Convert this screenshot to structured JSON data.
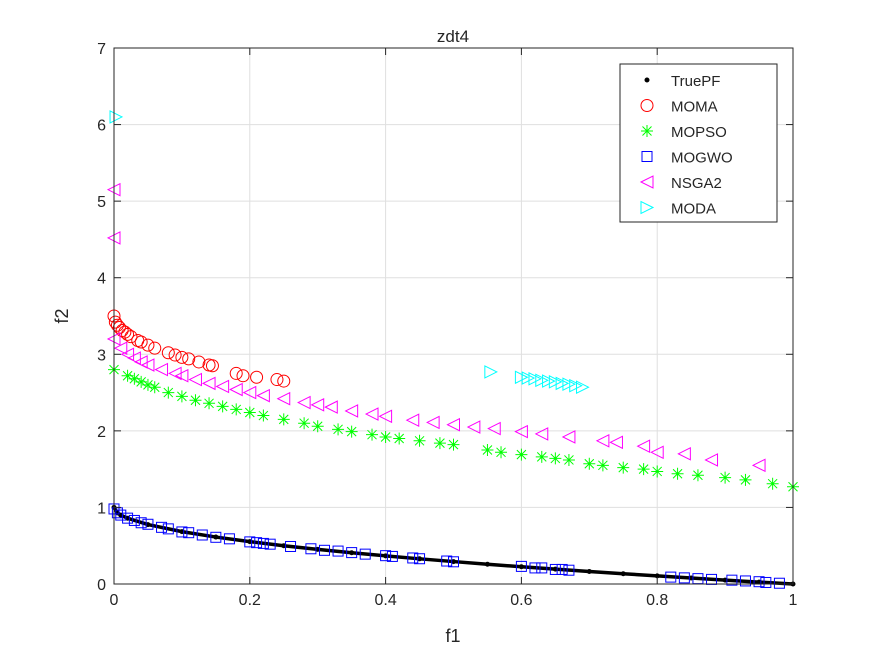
{
  "chart_data": {
    "type": "scatter",
    "title": "zdt4",
    "xlabel": "f1",
    "ylabel": "f2",
    "xlim": [
      0,
      1
    ],
    "ylim": [
      0,
      7
    ],
    "xticks": [
      0,
      0.2,
      0.4,
      0.6,
      0.8,
      1
    ],
    "xtick_labels": [
      "0",
      "0.2",
      "0.4",
      "0.6",
      "0.8",
      "1"
    ],
    "yticks": [
      0,
      1,
      2,
      3,
      4,
      5,
      6,
      7
    ],
    "ytick_labels": [
      "0",
      "1",
      "2",
      "3",
      "4",
      "5",
      "6",
      "7"
    ],
    "grid": true,
    "legend_position": "top-right",
    "series": [
      {
        "name": "TruePF",
        "marker": "dot",
        "color": "#000000",
        "x": [
          0,
          0.005,
          0.01,
          0.02,
          0.05,
          0.1,
          0.15,
          0.2,
          0.25,
          0.3,
          0.35,
          0.4,
          0.45,
          0.5,
          0.55,
          0.6,
          0.65,
          0.7,
          0.75,
          0.8,
          0.85,
          0.9,
          0.95,
          1
        ],
        "y": [
          1,
          0.929,
          0.9,
          0.859,
          0.776,
          0.684,
          0.613,
          0.553,
          0.5,
          0.452,
          0.408,
          0.368,
          0.329,
          0.293,
          0.258,
          0.225,
          0.194,
          0.163,
          0.134,
          0.106,
          0.078,
          0.051,
          0.025,
          0
        ]
      },
      {
        "name": "MOMA",
        "marker": "circle",
        "color": "#FF0000",
        "x": [
          0,
          0.002,
          0.005,
          0.008,
          0.012,
          0.016,
          0.02,
          0.025,
          0.035,
          0.04,
          0.05,
          0.06,
          0.08,
          0.09,
          0.1,
          0.11,
          0.125,
          0.14,
          0.145,
          0.18,
          0.19,
          0.21,
          0.24,
          0.25
        ],
        "y": [
          3.5,
          3.42,
          3.38,
          3.35,
          3.31,
          3.29,
          3.26,
          3.23,
          3.18,
          3.16,
          3.12,
          3.08,
          3.02,
          2.99,
          2.96,
          2.94,
          2.9,
          2.86,
          2.85,
          2.75,
          2.72,
          2.7,
          2.67,
          2.65
        ]
      },
      {
        "name": "MOPSO",
        "marker": "star",
        "color": "#00FF00",
        "x": [
          0,
          0.02,
          0.03,
          0.04,
          0.05,
          0.06,
          0.08,
          0.1,
          0.12,
          0.14,
          0.16,
          0.18,
          0.2,
          0.22,
          0.25,
          0.28,
          0.3,
          0.33,
          0.35,
          0.38,
          0.4,
          0.42,
          0.45,
          0.48,
          0.5,
          0.55,
          0.57,
          0.6,
          0.63,
          0.65,
          0.67,
          0.7,
          0.72,
          0.75,
          0.78,
          0.8,
          0.83,
          0.86,
          0.9,
          0.93,
          0.97,
          1
        ],
        "y": [
          2.8,
          2.72,
          2.68,
          2.64,
          2.6,
          2.57,
          2.5,
          2.45,
          2.4,
          2.36,
          2.32,
          2.28,
          2.24,
          2.2,
          2.15,
          2.1,
          2.06,
          2.02,
          1.99,
          1.95,
          1.92,
          1.9,
          1.87,
          1.84,
          1.82,
          1.75,
          1.72,
          1.69,
          1.66,
          1.64,
          1.62,
          1.57,
          1.55,
          1.52,
          1.5,
          1.47,
          1.44,
          1.42,
          1.39,
          1.36,
          1.31,
          1.27
        ]
      },
      {
        "name": "MOGWO",
        "marker": "square",
        "color": "#0000FF",
        "x": [
          0,
          0.005,
          0.01,
          0.02,
          0.03,
          0.04,
          0.05,
          0.07,
          0.08,
          0.1,
          0.11,
          0.13,
          0.15,
          0.17,
          0.2,
          0.21,
          0.22,
          0.23,
          0.26,
          0.29,
          0.31,
          0.33,
          0.35,
          0.37,
          0.4,
          0.41,
          0.44,
          0.45,
          0.49,
          0.5,
          0.6,
          0.62,
          0.63,
          0.65,
          0.66,
          0.67,
          0.82,
          0.84,
          0.86,
          0.88,
          0.91,
          0.93,
          0.95,
          0.96,
          0.98
        ],
        "y": [
          0.98,
          0.93,
          0.9,
          0.86,
          0.83,
          0.8,
          0.78,
          0.74,
          0.72,
          0.68,
          0.67,
          0.64,
          0.61,
          0.59,
          0.55,
          0.54,
          0.53,
          0.52,
          0.49,
          0.46,
          0.44,
          0.43,
          0.41,
          0.39,
          0.37,
          0.36,
          0.34,
          0.33,
          0.3,
          0.29,
          0.23,
          0.21,
          0.21,
          0.19,
          0.19,
          0.18,
          0.09,
          0.08,
          0.07,
          0.06,
          0.05,
          0.04,
          0.03,
          0.02,
          0.01
        ]
      },
      {
        "name": "NSGA2",
        "marker": "triangle-left",
        "color": "#FF00FF",
        "x": [
          0,
          0,
          0,
          0.01,
          0.02,
          0.03,
          0.04,
          0.05,
          0.07,
          0.09,
          0.1,
          0.12,
          0.14,
          0.16,
          0.18,
          0.2,
          0.22,
          0.25,
          0.28,
          0.3,
          0.32,
          0.35,
          0.38,
          0.4,
          0.44,
          0.47,
          0.5,
          0.53,
          0.56,
          0.6,
          0.63,
          0.67,
          0.72,
          0.74,
          0.78,
          0.8,
          0.84,
          0.88,
          0.95
        ],
        "y": [
          5.15,
          4.52,
          3.2,
          3.08,
          3.0,
          2.95,
          2.9,
          2.86,
          2.8,
          2.75,
          2.72,
          2.67,
          2.62,
          2.58,
          2.54,
          2.5,
          2.46,
          2.42,
          2.37,
          2.34,
          2.31,
          2.26,
          2.22,
          2.19,
          2.14,
          2.11,
          2.08,
          2.05,
          2.03,
          1.99,
          1.96,
          1.92,
          1.87,
          1.85,
          1.8,
          1.72,
          1.7,
          1.62,
          1.55
        ]
      },
      {
        "name": "MODA",
        "marker": "triangle-right",
        "color": "#00FFFF",
        "x": [
          0.003,
          0.555,
          0.6,
          0.61,
          0.62,
          0.63,
          0.64,
          0.65,
          0.66,
          0.67,
          0.68,
          0.69
        ],
        "y": [
          6.1,
          2.77,
          2.7,
          2.69,
          2.68,
          2.66,
          2.65,
          2.64,
          2.62,
          2.61,
          2.59,
          2.57
        ]
      }
    ]
  }
}
